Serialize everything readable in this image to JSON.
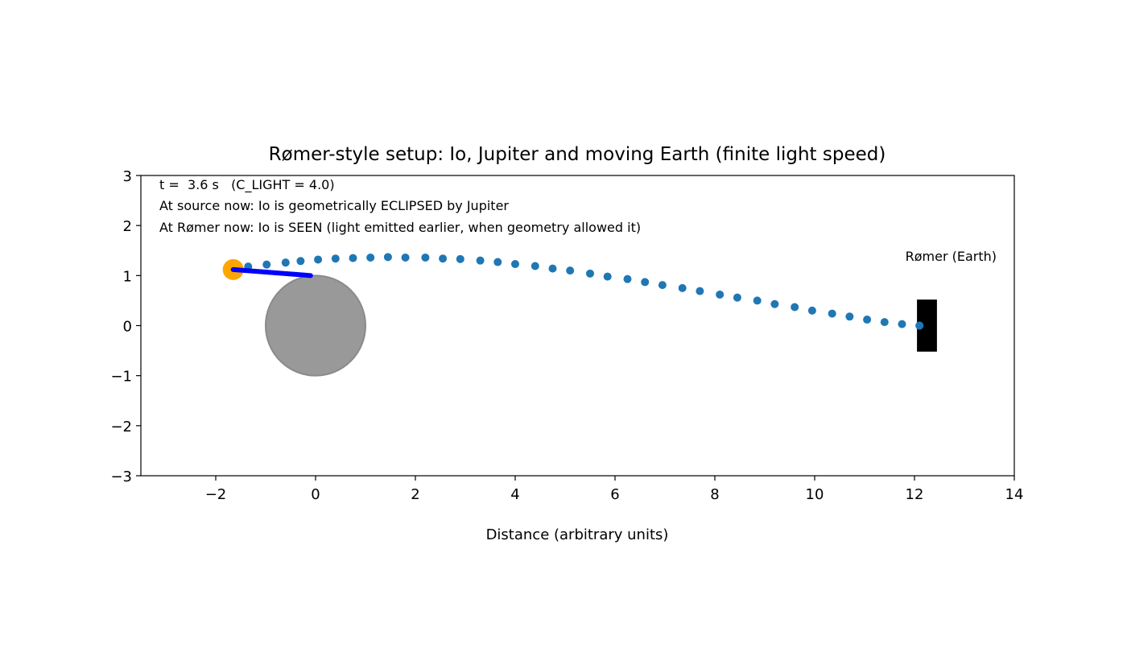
{
  "chart_data": {
    "type": "scatter",
    "title": "Rømer-style setup: Io, Jupiter and moving Earth (finite light speed)",
    "xlabel": "Distance (arbitrary units)",
    "ylabel": "",
    "xlim": [
      -3.5,
      14
    ],
    "ylim": [
      -3,
      3
    ],
    "xticks": [
      -2,
      0,
      2,
      4,
      6,
      8,
      10,
      12,
      14
    ],
    "xtick_labels": [
      "−2",
      "0",
      "2",
      "4",
      "6",
      "8",
      "10",
      "12",
      "14"
    ],
    "yticks": [
      -3,
      -2,
      -1,
      0,
      1,
      2,
      3
    ],
    "ytick_labels": [
      "−3",
      "−2",
      "−1",
      "0",
      "1",
      "2",
      "3"
    ],
    "grid": false,
    "annotations": {
      "time_line": "t =  3.6 s   (C_LIGHT = 4.0)",
      "source_line": "At source now: Io is geometrically ECLIPSED by Jupiter",
      "observer_line": "At Rømer now: Io is SEEN (light emitted earlier, when geometry allowed it)",
      "earth_label": "Rømer (Earth)"
    },
    "colors": {
      "jupiter": "#999999",
      "jupiter_edge": "#8a8a8a",
      "io": "#ffa500",
      "io_trail": "#0000ff",
      "light_path": "#1f77b4",
      "detector": "#000000"
    },
    "jupiter": {
      "center": [
        0,
        0
      ],
      "radius": 1.0
    },
    "io": {
      "position": [
        -1.65,
        1.12
      ]
    },
    "io_trail": [
      [
        -1.65,
        1.12
      ],
      [
        -0.1,
        1.0
      ]
    ],
    "detector": {
      "x_range": [
        12.05,
        12.45
      ],
      "y_range": [
        -0.52,
        0.52
      ]
    },
    "earth_position": [
      12.1,
      0.0
    ],
    "light_path": {
      "x": [
        -1.35,
        -0.98,
        -0.6,
        -0.3,
        0.05,
        0.4,
        0.75,
        1.1,
        1.45,
        1.8,
        2.2,
        2.55,
        2.9,
        3.3,
        3.65,
        4.0,
        4.4,
        4.75,
        5.1,
        5.5,
        5.85,
        6.25,
        6.6,
        6.95,
        7.35,
        7.7,
        8.1,
        8.45,
        8.85,
        9.2,
        9.6,
        9.95,
        10.35,
        10.7,
        11.05,
        11.4,
        11.75,
        12.1
      ],
      "y": [
        1.18,
        1.22,
        1.26,
        1.29,
        1.32,
        1.34,
        1.35,
        1.36,
        1.37,
        1.36,
        1.36,
        1.34,
        1.33,
        1.3,
        1.27,
        1.23,
        1.19,
        1.14,
        1.1,
        1.04,
        0.98,
        0.93,
        0.87,
        0.81,
        0.75,
        0.69,
        0.62,
        0.56,
        0.5,
        0.43,
        0.37,
        0.3,
        0.24,
        0.18,
        0.12,
        0.07,
        0.03,
        0.0
      ]
    }
  }
}
